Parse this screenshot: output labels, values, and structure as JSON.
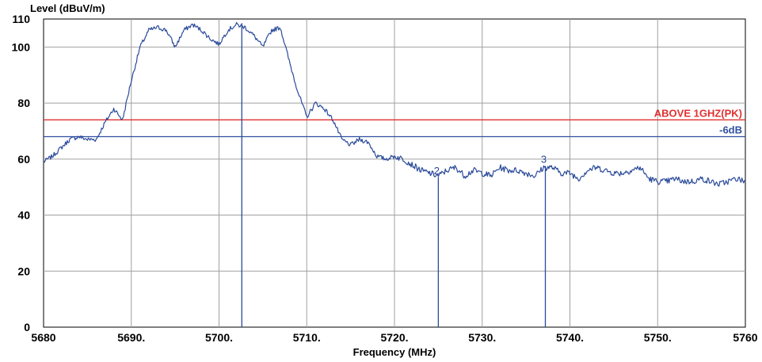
{
  "chart_data": {
    "type": "line",
    "ylabel": "Level (dBuV/m)",
    "xlabel": "Frequency (MHz)",
    "xlim": [
      5680,
      5760
    ],
    "ylim": [
      0,
      110
    ],
    "x_ticks": [
      "5680",
      "5690.",
      "5700.",
      "5710.",
      "5720.",
      "5730.",
      "5740.",
      "5750.",
      "5760"
    ],
    "x_tick_values": [
      5680,
      5690,
      5700,
      5710,
      5720,
      5730,
      5740,
      5750,
      5760
    ],
    "y_ticks": [
      "0",
      "20",
      "40",
      "60",
      "80",
      "100",
      "110"
    ],
    "y_tick_values": [
      0,
      20,
      40,
      60,
      80,
      100,
      110
    ],
    "grid": true,
    "limit_lines": [
      {
        "label": "ABOVE 1GHZ(PK)",
        "value": 74,
        "color": "#e03030"
      },
      {
        "label": "-6dB",
        "value": 68,
        "color": "#3050a0"
      }
    ],
    "markers": [
      {
        "label": "",
        "x": 5702.6,
        "y": 108.5
      },
      {
        "label": "2",
        "x": 5725.0,
        "y": 53.5
      },
      {
        "label": "3",
        "x": 5737.2,
        "y": 57.5
      }
    ],
    "series": [
      {
        "color": "#2a4a9a",
        "x": [
          5680,
          5681,
          5682,
          5683,
          5684,
          5685,
          5686,
          5687,
          5688,
          5689,
          5690,
          5691,
          5692,
          5693,
          5694,
          5695,
          5696,
          5697,
          5698,
          5699,
          5700,
          5701,
          5702,
          5703,
          5704,
          5705,
          5706,
          5707,
          5708,
          5709,
          5710,
          5711,
          5712,
          5713,
          5714,
          5715,
          5716,
          5717,
          5718,
          5719,
          5720,
          5721,
          5722,
          5723,
          5724,
          5725,
          5726,
          5727,
          5728,
          5729,
          5730,
          5731,
          5732,
          5733,
          5734,
          5735,
          5736,
          5737,
          5738,
          5739,
          5740,
          5741,
          5742,
          5743,
          5744,
          5745,
          5746,
          5747,
          5748,
          5749,
          5750,
          5751,
          5752,
          5753,
          5754,
          5755,
          5756,
          5757,
          5758,
          5759,
          5760
        ],
        "y": [
          59,
          61,
          64,
          67,
          68,
          67,
          67,
          73,
          78,
          74,
          88,
          100,
          106,
          107,
          106,
          100,
          106,
          108,
          106,
          103,
          101,
          106,
          108,
          107,
          104,
          100,
          106,
          107,
          95,
          84,
          75,
          80,
          78,
          74,
          67,
          65,
          67,
          66,
          61,
          60,
          61,
          60,
          58,
          56,
          55,
          54,
          56,
          57,
          54,
          56,
          55,
          54,
          57,
          56,
          56,
          55,
          54,
          57,
          57,
          55,
          55,
          53,
          56,
          57,
          56,
          55,
          55,
          56,
          57,
          53,
          52,
          52,
          53,
          52,
          52,
          53,
          52,
          51,
          52,
          53,
          52
        ]
      }
    ]
  }
}
